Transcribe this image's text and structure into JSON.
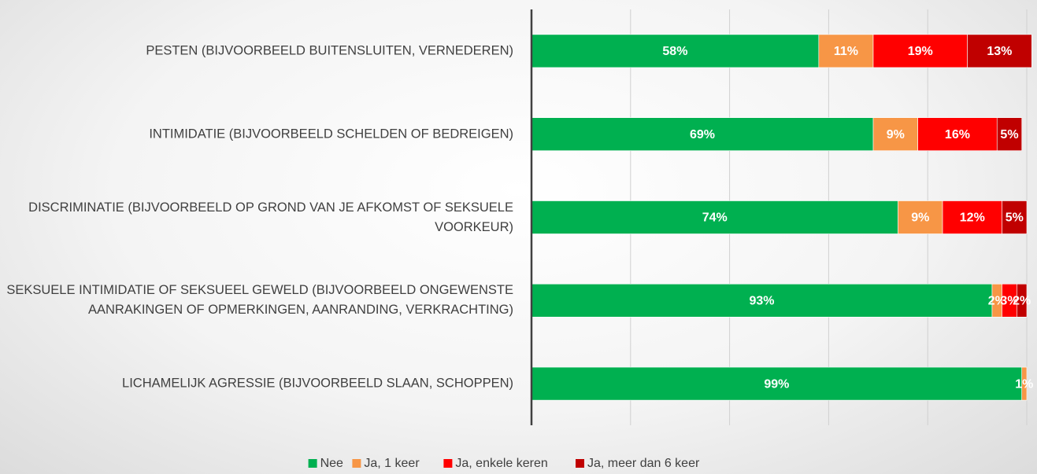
{
  "chart_data": {
    "type": "stacked-barh",
    "categories": [
      "PESTEN (BIJVOORBEELD BUITENSLUITEN, VERNEDEREN)",
      "INTIMIDATIE (BIJVOORBEELD SCHELDEN OF BEDREIGEN)",
      "DISCRIMINATIE (BIJVOORBEELD OP GROND VAN JE AFKOMST OF SEKSUELE VOORKEUR)",
      "SEKSUELE INTIMIDATIE OF SEKSUEEL GEWELD (BIJVOORBEELD ONGEWENSTE AANRAKINGEN OF OPMERKINGEN, AANRANDING, VERKRACHTING)",
      "LICHAMELIJK AGRESSIE (BIJVOORBEELD SLAAN, SCHOPPEN)"
    ],
    "series": [
      {
        "name": "Nee",
        "color": "#00b050",
        "values": [
          58,
          69,
          74,
          93,
          99
        ],
        "value_labels": [
          "58%",
          "69%",
          "74%",
          "93%",
          "99%"
        ]
      },
      {
        "name": "Ja, 1 keer",
        "color": "#f79646",
        "values": [
          11,
          9,
          9,
          2,
          1
        ],
        "value_labels": [
          "11%",
          "9%",
          "9%",
          "2%",
          "1%"
        ]
      },
      {
        "name": "Ja, enkele keren",
        "color": "#ff0000",
        "values": [
          19,
          16,
          12,
          3,
          0
        ],
        "value_labels": [
          "19%",
          "16%",
          "12%",
          "3%",
          null
        ]
      },
      {
        "name": "Ja, meer dan 6 keer",
        "color": "#c00000",
        "values": [
          13,
          5,
          5,
          2,
          0
        ],
        "value_labels": [
          "13%",
          "5%",
          "5%",
          "2%",
          null
        ]
      }
    ],
    "xlim": [
      0,
      100
    ],
    "xticks": [
      0,
      20,
      40,
      60,
      80,
      100
    ],
    "grid": true,
    "legend": "bottom"
  }
}
